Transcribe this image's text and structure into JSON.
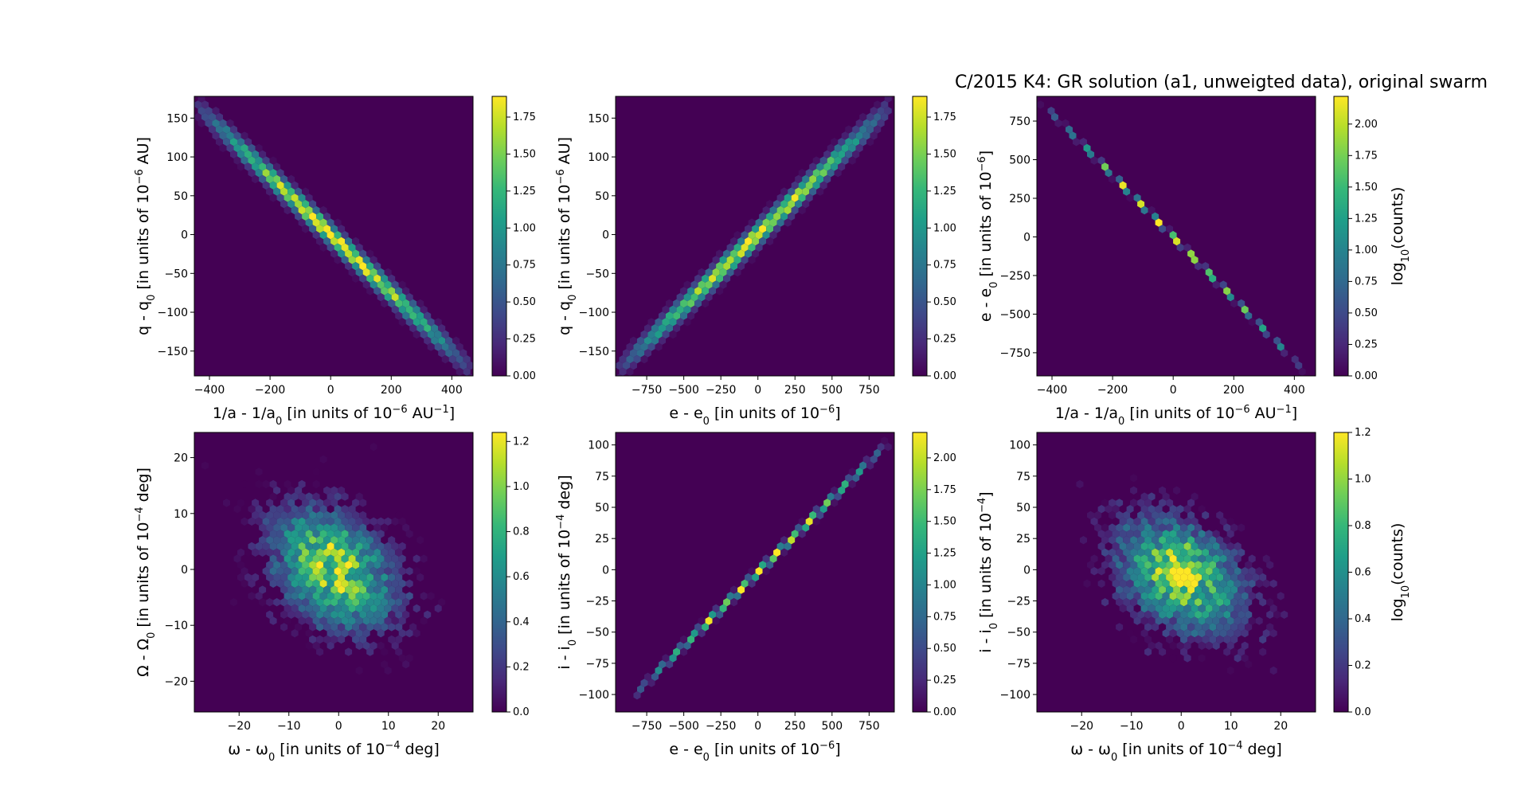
{
  "figure": {
    "title": "C/2015 K4: GR solution (a1, unweigted data),  original swarm"
  },
  "colormap": {
    "name": "viridis",
    "stops": [
      "#440154",
      "#482878",
      "#3e4989",
      "#31688e",
      "#26828e",
      "#1f9e89",
      "#35b779",
      "#6ece58",
      "#b5de2b",
      "#fde725"
    ]
  },
  "chart_data": [
    {
      "type": "heatmap",
      "kind": "hexbin",
      "shape": "line",
      "xlabel": "1/a - 1/a",
      "xlabel_sub": "0",
      "xlabel_mid": " [in units of 10",
      "xlabel_sup": "−6",
      "xlabel_end": " AU",
      "xlabel_sup2": "−1",
      "xlabel_tail": "]",
      "ylabel": "q - q",
      "ylabel_sub": "0",
      "ylabel_mid": " [in units of 10",
      "ylabel_sup": "−6",
      "ylabel_end": " AU]",
      "xlim": [
        -450,
        470
      ],
      "ylim": [
        -182,
        178
      ],
      "xticks": [
        -400,
        -200,
        0,
        200,
        400
      ],
      "yticks": [
        -150,
        -100,
        -50,
        0,
        50,
        100,
        150
      ],
      "slope": -0.375,
      "intercept": 0,
      "x_extent": [
        -440,
        465
      ],
      "width": 16,
      "peak": 1.85,
      "colorbar": {
        "min": 0,
        "max": 1.89,
        "ticks": [
          "0.00",
          "0.25",
          "0.50",
          "0.75",
          "1.00",
          "1.25",
          "1.50",
          "1.75"
        ],
        "label": ""
      }
    },
    {
      "type": "heatmap",
      "kind": "hexbin",
      "shape": "line",
      "xlabel": "e - e",
      "xlabel_sub": "0",
      "xlabel_mid": " [in units of 10",
      "xlabel_sup": "−6",
      "xlabel_end": "]",
      "ylabel": "q - q",
      "ylabel_sub": "0",
      "ylabel_mid": " [in units of 10",
      "ylabel_sup": "−6",
      "ylabel_end": " AU]",
      "xlim": [
        -960,
        920
      ],
      "ylim": [
        -182,
        178
      ],
      "xticks": [
        -750,
        -500,
        -250,
        0,
        250,
        500,
        750
      ],
      "yticks": [
        -150,
        -100,
        -50,
        0,
        50,
        100,
        150
      ],
      "slope": 0.185,
      "intercept": 0,
      "x_extent": [
        -940,
        900
      ],
      "width": 16,
      "peak": 1.85,
      "colorbar": {
        "min": 0,
        "max": 1.89,
        "ticks": [
          "0.00",
          "0.25",
          "0.50",
          "0.75",
          "1.00",
          "1.25",
          "1.50",
          "1.75"
        ],
        "label": ""
      }
    },
    {
      "type": "heatmap",
      "kind": "hexbin",
      "shape": "line",
      "xlabel": "1/a - 1/a",
      "xlabel_sub": "0",
      "xlabel_mid": " [in units of 10",
      "xlabel_sup": "−6",
      "xlabel_end": " AU",
      "xlabel_sup2": "−1",
      "xlabel_tail": "]",
      "ylabel": "e - e",
      "ylabel_sub": "0",
      "ylabel_mid": " [in units of 10",
      "ylabel_sup": "−6",
      "ylabel_end": "]",
      "xlim": [
        -450,
        470
      ],
      "ylim": [
        -900,
        910
      ],
      "xticks": [
        -400,
        -200,
        0,
        200,
        400
      ],
      "yticks": [
        -750,
        -500,
        -250,
        0,
        250,
        500,
        750
      ],
      "slope": -2.0,
      "intercept": 0,
      "x_extent": [
        -440,
        430
      ],
      "width": 4,
      "peak": 2.2,
      "colorbar": {
        "min": 0,
        "max": 2.22,
        "ticks": [
          "0.00",
          "0.25",
          "0.50",
          "0.75",
          "1.00",
          "1.25",
          "1.50",
          "1.75",
          "2.00"
        ],
        "label": "log",
        "label_sub": "10",
        "label_end": "(counts)"
      }
    },
    {
      "type": "heatmap",
      "kind": "hexbin",
      "shape": "cloud",
      "xlabel": "ω - ω",
      "xlabel_sub": "0",
      "xlabel_mid": " [in units of 10",
      "xlabel_sup": "−4",
      "xlabel_end": " deg]",
      "ylabel": "Ω - Ω",
      "ylabel_sub": "0",
      "ylabel_mid": " [in units of 10",
      "ylabel_sup": "−4",
      "ylabel_end": " deg]",
      "xlim": [
        -29,
        27
      ],
      "ylim": [
        -25.5,
        24.5
      ],
      "xticks": [
        -20,
        -10,
        0,
        10,
        20
      ],
      "yticks": [
        -20,
        -10,
        0,
        10,
        20
      ],
      "center": [
        -1,
        0
      ],
      "spread": [
        8,
        7
      ],
      "rho": -0.35,
      "peak": 1.2,
      "colorbar": {
        "min": 0,
        "max": 1.24,
        "ticks": [
          "0.0",
          "0.2",
          "0.4",
          "0.6",
          "0.8",
          "1.0",
          "1.2"
        ],
        "label": ""
      }
    },
    {
      "type": "heatmap",
      "kind": "hexbin",
      "shape": "line",
      "xlabel": "e - e",
      "xlabel_sub": "0",
      "xlabel_mid": " [in units of 10",
      "xlabel_sup": "−6",
      "xlabel_end": "]",
      "ylabel": "i - i",
      "ylabel_sub": "0",
      "ylabel_mid": " [in units of 10",
      "ylabel_sup": "−4",
      "ylabel_end": " deg]",
      "xlim": [
        -960,
        920
      ],
      "ylim": [
        -114,
        110
      ],
      "xticks": [
        -750,
        -500,
        -250,
        0,
        250,
        500,
        750
      ],
      "yticks": [
        -100,
        -75,
        -50,
        -25,
        0,
        25,
        50,
        75,
        100
      ],
      "slope": 0.118,
      "intercept": -2,
      "x_extent": [
        -860,
        900
      ],
      "width": 6,
      "peak": 2.2,
      "colorbar": {
        "min": 0,
        "max": 2.2,
        "ticks": [
          "0.00",
          "0.25",
          "0.50",
          "0.75",
          "1.00",
          "1.25",
          "1.50",
          "1.75",
          "2.00"
        ],
        "label": ""
      }
    },
    {
      "type": "heatmap",
      "kind": "hexbin",
      "shape": "cloud",
      "xlabel": "ω - ω",
      "xlabel_sub": "0",
      "xlabel_mid": " [in units of 10",
      "xlabel_sup": "−4",
      "xlabel_end": " deg]",
      "ylabel": "i - i",
      "ylabel_sub": "0",
      "ylabel_mid": " [in units of 10",
      "ylabel_sup": "−4",
      "ylabel_end": "]",
      "xlim": [
        -29,
        27
      ],
      "ylim": [
        -114,
        110
      ],
      "xticks": [
        -20,
        -10,
        0,
        10,
        20
      ],
      "yticks": [
        -100,
        -75,
        -50,
        -25,
        0,
        25,
        50,
        75,
        100
      ],
      "center": [
        0,
        -5
      ],
      "spread": [
        8,
        30
      ],
      "rho": -0.35,
      "peak": 1.2,
      "colorbar": {
        "min": 0,
        "max": 1.2,
        "ticks": [
          "0.0",
          "0.2",
          "0.4",
          "0.6",
          "0.8",
          "1.0",
          "1.2"
        ],
        "label": "log",
        "label_sub": "10",
        "label_end": "(counts)"
      }
    }
  ]
}
